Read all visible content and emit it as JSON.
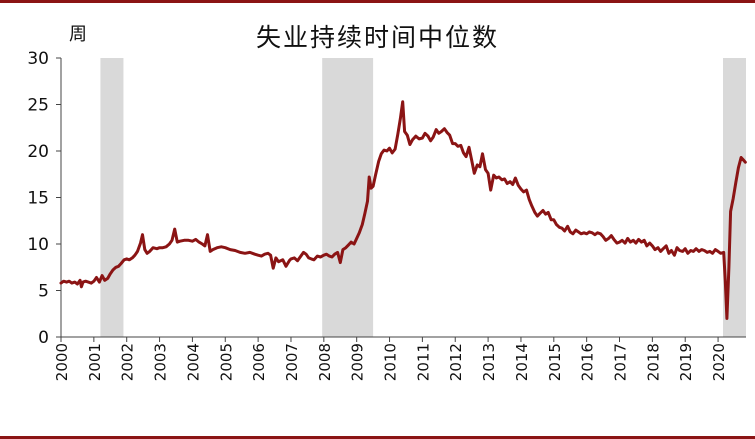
{
  "chart_data": {
    "type": "line",
    "title": "失业持续时间中位数",
    "ylabel": "周",
    "xlabel": "",
    "xlim": [
      2000,
      2020.85
    ],
    "ylim": [
      0,
      30
    ],
    "yticks": [
      "0",
      "5",
      "10",
      "15",
      "20",
      "25",
      "30"
    ],
    "xticks": [
      "2000",
      "2001",
      "2002",
      "2003",
      "2004",
      "2005",
      "2006",
      "2007",
      "2008",
      "2009",
      "2010",
      "2011",
      "2012",
      "2013",
      "2014",
      "2015",
      "2016",
      "2017",
      "2018",
      "2019",
      "2020"
    ],
    "grid": false,
    "legend": "none",
    "shaded_periods": [
      {
        "start": 2001.2,
        "end": 2001.9
      },
      {
        "start": 2007.95,
        "end": 2009.5
      },
      {
        "start": 2020.15,
        "end": 2020.85
      }
    ],
    "series": [
      {
        "color": "#8b1414",
        "shade_color": "#d9d9d9",
        "points": [
          [
            2000.0,
            5.8
          ],
          [
            2000.08,
            6.0
          ],
          [
            2000.17,
            5.9
          ],
          [
            2000.25,
            6.0
          ],
          [
            2000.33,
            5.8
          ],
          [
            2000.42,
            5.9
          ],
          [
            2000.5,
            5.7
          ],
          [
            2000.58,
            6.1
          ],
          [
            2000.62,
            5.4
          ],
          [
            2000.67,
            5.9
          ],
          [
            2000.75,
            6.0
          ],
          [
            2000.83,
            5.9
          ],
          [
            2000.92,
            5.8
          ],
          [
            2001.0,
            6.0
          ],
          [
            2001.08,
            6.4
          ],
          [
            2001.17,
            5.9
          ],
          [
            2001.25,
            6.6
          ],
          [
            2001.33,
            6.1
          ],
          [
            2001.42,
            6.3
          ],
          [
            2001.5,
            6.8
          ],
          [
            2001.58,
            7.2
          ],
          [
            2001.67,
            7.5
          ],
          [
            2001.75,
            7.6
          ],
          [
            2001.83,
            7.9
          ],
          [
            2001.92,
            8.3
          ],
          [
            2002.0,
            8.4
          ],
          [
            2002.08,
            8.3
          ],
          [
            2002.17,
            8.5
          ],
          [
            2002.25,
            8.8
          ],
          [
            2002.33,
            9.2
          ],
          [
            2002.42,
            10.1
          ],
          [
            2002.48,
            11.0
          ],
          [
            2002.55,
            9.4
          ],
          [
            2002.62,
            9.0
          ],
          [
            2002.7,
            9.2
          ],
          [
            2002.8,
            9.6
          ],
          [
            2002.92,
            9.5
          ],
          [
            2003.0,
            9.6
          ],
          [
            2003.1,
            9.6
          ],
          [
            2003.2,
            9.7
          ],
          [
            2003.3,
            10.0
          ],
          [
            2003.38,
            10.4
          ],
          [
            2003.46,
            11.6
          ],
          [
            2003.54,
            10.2
          ],
          [
            2003.62,
            10.3
          ],
          [
            2003.75,
            10.4
          ],
          [
            2003.88,
            10.4
          ],
          [
            2004.0,
            10.3
          ],
          [
            2004.1,
            10.5
          ],
          [
            2004.2,
            10.2
          ],
          [
            2004.3,
            10.0
          ],
          [
            2004.38,
            9.8
          ],
          [
            2004.46,
            11.0
          ],
          [
            2004.54,
            9.2
          ],
          [
            2004.62,
            9.4
          ],
          [
            2004.75,
            9.6
          ],
          [
            2004.88,
            9.7
          ],
          [
            2005.0,
            9.6
          ],
          [
            2005.15,
            9.4
          ],
          [
            2005.3,
            9.3
          ],
          [
            2005.45,
            9.1
          ],
          [
            2005.6,
            9.0
          ],
          [
            2005.75,
            9.1
          ],
          [
            2005.9,
            8.9
          ],
          [
            2006.0,
            8.8
          ],
          [
            2006.1,
            8.7
          ],
          [
            2006.2,
            8.9
          ],
          [
            2006.3,
            9.0
          ],
          [
            2006.38,
            8.8
          ],
          [
            2006.46,
            7.4
          ],
          [
            2006.54,
            8.5
          ],
          [
            2006.62,
            8.1
          ],
          [
            2006.75,
            8.3
          ],
          [
            2006.85,
            7.6
          ],
          [
            2006.95,
            8.2
          ],
          [
            2007.0,
            8.4
          ],
          [
            2007.1,
            8.5
          ],
          [
            2007.2,
            8.2
          ],
          [
            2007.3,
            8.7
          ],
          [
            2007.38,
            9.1
          ],
          [
            2007.46,
            8.9
          ],
          [
            2007.54,
            8.5
          ],
          [
            2007.62,
            8.4
          ],
          [
            2007.7,
            8.3
          ],
          [
            2007.8,
            8.7
          ],
          [
            2007.9,
            8.6
          ],
          [
            2008.0,
            8.8
          ],
          [
            2008.08,
            8.9
          ],
          [
            2008.17,
            8.7
          ],
          [
            2008.25,
            8.6
          ],
          [
            2008.33,
            8.9
          ],
          [
            2008.42,
            9.1
          ],
          [
            2008.5,
            8.0
          ],
          [
            2008.58,
            9.4
          ],
          [
            2008.67,
            9.6
          ],
          [
            2008.75,
            9.9
          ],
          [
            2008.83,
            10.2
          ],
          [
            2008.92,
            10.0
          ],
          [
            2009.0,
            10.6
          ],
          [
            2009.08,
            11.2
          ],
          [
            2009.17,
            12.1
          ],
          [
            2009.25,
            13.3
          ],
          [
            2009.33,
            14.6
          ],
          [
            2009.38,
            17.2
          ],
          [
            2009.44,
            16.0
          ],
          [
            2009.5,
            16.2
          ],
          [
            2009.58,
            17.5
          ],
          [
            2009.67,
            18.9
          ],
          [
            2009.75,
            19.7
          ],
          [
            2009.83,
            20.1
          ],
          [
            2009.92,
            20.0
          ],
          [
            2010.0,
            20.3
          ],
          [
            2010.08,
            19.8
          ],
          [
            2010.17,
            20.2
          ],
          [
            2010.25,
            21.8
          ],
          [
            2010.33,
            23.5
          ],
          [
            2010.4,
            25.3
          ],
          [
            2010.46,
            22.1
          ],
          [
            2010.54,
            21.7
          ],
          [
            2010.62,
            20.7
          ],
          [
            2010.7,
            21.2
          ],
          [
            2010.8,
            21.6
          ],
          [
            2010.9,
            21.3
          ],
          [
            2011.0,
            21.4
          ],
          [
            2011.08,
            21.9
          ],
          [
            2011.17,
            21.6
          ],
          [
            2011.25,
            21.1
          ],
          [
            2011.33,
            21.5
          ],
          [
            2011.42,
            22.3
          ],
          [
            2011.5,
            21.9
          ],
          [
            2011.58,
            22.1
          ],
          [
            2011.67,
            22.4
          ],
          [
            2011.75,
            22.0
          ],
          [
            2011.83,
            21.7
          ],
          [
            2011.92,
            20.8
          ],
          [
            2012.0,
            20.8
          ],
          [
            2012.08,
            20.5
          ],
          [
            2012.17,
            20.6
          ],
          [
            2012.25,
            19.8
          ],
          [
            2012.33,
            19.4
          ],
          [
            2012.42,
            20.4
          ],
          [
            2012.5,
            19.0
          ],
          [
            2012.58,
            17.6
          ],
          [
            2012.67,
            18.5
          ],
          [
            2012.75,
            18.3
          ],
          [
            2012.83,
            19.7
          ],
          [
            2012.92,
            18.0
          ],
          [
            2013.0,
            17.6
          ],
          [
            2013.08,
            15.8
          ],
          [
            2013.17,
            17.4
          ],
          [
            2013.25,
            17.1
          ],
          [
            2013.33,
            17.2
          ],
          [
            2013.42,
            16.9
          ],
          [
            2013.5,
            17.0
          ],
          [
            2013.58,
            16.5
          ],
          [
            2013.67,
            16.7
          ],
          [
            2013.75,
            16.4
          ],
          [
            2013.83,
            17.1
          ],
          [
            2013.92,
            16.3
          ],
          [
            2014.0,
            15.9
          ],
          [
            2014.08,
            15.6
          ],
          [
            2014.17,
            15.8
          ],
          [
            2014.25,
            14.8
          ],
          [
            2014.33,
            14.1
          ],
          [
            2014.42,
            13.4
          ],
          [
            2014.5,
            13.0
          ],
          [
            2014.58,
            13.3
          ],
          [
            2014.67,
            13.6
          ],
          [
            2014.75,
            13.2
          ],
          [
            2014.83,
            13.4
          ],
          [
            2014.92,
            12.6
          ],
          [
            2015.0,
            12.6
          ],
          [
            2015.08,
            12.1
          ],
          [
            2015.17,
            11.8
          ],
          [
            2015.25,
            11.7
          ],
          [
            2015.33,
            11.4
          ],
          [
            2015.42,
            11.9
          ],
          [
            2015.5,
            11.3
          ],
          [
            2015.58,
            11.1
          ],
          [
            2015.67,
            11.5
          ],
          [
            2015.75,
            11.3
          ],
          [
            2015.83,
            11.1
          ],
          [
            2015.92,
            11.2
          ],
          [
            2016.0,
            11.1
          ],
          [
            2016.08,
            11.3
          ],
          [
            2016.17,
            11.2
          ],
          [
            2016.25,
            11.0
          ],
          [
            2016.33,
            11.2
          ],
          [
            2016.42,
            11.1
          ],
          [
            2016.5,
            10.8
          ],
          [
            2016.58,
            10.4
          ],
          [
            2016.67,
            10.6
          ],
          [
            2016.75,
            10.9
          ],
          [
            2016.83,
            10.5
          ],
          [
            2016.92,
            10.1
          ],
          [
            2017.0,
            10.2
          ],
          [
            2017.08,
            10.4
          ],
          [
            2017.17,
            10.1
          ],
          [
            2017.25,
            10.6
          ],
          [
            2017.33,
            10.2
          ],
          [
            2017.42,
            10.4
          ],
          [
            2017.5,
            10.1
          ],
          [
            2017.58,
            10.5
          ],
          [
            2017.67,
            10.2
          ],
          [
            2017.75,
            10.4
          ],
          [
            2017.83,
            9.8
          ],
          [
            2017.92,
            10.1
          ],
          [
            2018.0,
            9.8
          ],
          [
            2018.08,
            9.4
          ],
          [
            2018.17,
            9.6
          ],
          [
            2018.25,
            9.2
          ],
          [
            2018.33,
            9.5
          ],
          [
            2018.42,
            9.8
          ],
          [
            2018.5,
            9.0
          ],
          [
            2018.58,
            9.3
          ],
          [
            2018.67,
            8.8
          ],
          [
            2018.75,
            9.6
          ],
          [
            2018.83,
            9.3
          ],
          [
            2018.92,
            9.2
          ],
          [
            2019.0,
            9.5
          ],
          [
            2019.08,
            9.0
          ],
          [
            2019.17,
            9.3
          ],
          [
            2019.25,
            9.2
          ],
          [
            2019.33,
            9.5
          ],
          [
            2019.42,
            9.2
          ],
          [
            2019.5,
            9.4
          ],
          [
            2019.58,
            9.3
          ],
          [
            2019.67,
            9.1
          ],
          [
            2019.75,
            9.2
          ],
          [
            2019.83,
            9.0
          ],
          [
            2019.92,
            9.4
          ],
          [
            2020.0,
            9.2
          ],
          [
            2020.08,
            9.0
          ],
          [
            2020.17,
            9.1
          ],
          [
            2020.22,
            6.0
          ],
          [
            2020.27,
            2.0
          ],
          [
            2020.33,
            7.5
          ],
          [
            2020.38,
            13.5
          ],
          [
            2020.46,
            14.9
          ],
          [
            2020.54,
            16.6
          ],
          [
            2020.62,
            18.2
          ],
          [
            2020.7,
            19.3
          ],
          [
            2020.78,
            19.0
          ],
          [
            2020.83,
            18.8
          ]
        ]
      }
    ]
  }
}
